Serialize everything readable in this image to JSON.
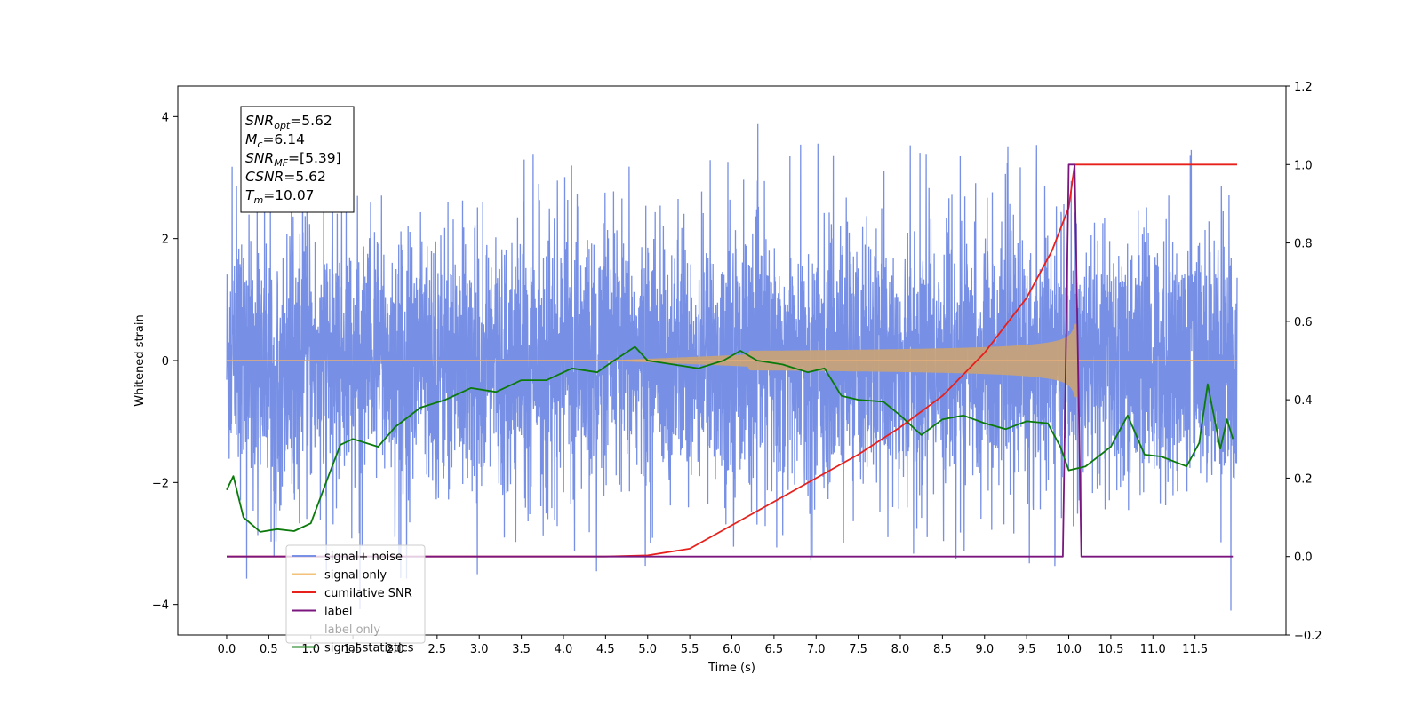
{
  "chart_data": {
    "type": "line",
    "xlabel": "Time (s)",
    "ylabel": "Whitened strain",
    "xlim": [
      -0.58,
      12.58
    ],
    "ylim_left": [
      -4.5,
      4.5
    ],
    "ylim_right": [
      -0.2,
      1.2
    ],
    "x_ticks": [
      0.0,
      0.5,
      1.0,
      1.5,
      2.0,
      2.5,
      3.0,
      3.5,
      4.0,
      4.5,
      5.0,
      5.5,
      6.0,
      6.5,
      7.0,
      7.5,
      8.0,
      8.5,
      9.0,
      9.5,
      10.0,
      10.5,
      11.0,
      11.5
    ],
    "x_tick_labels": [
      "0.0",
      "0.5",
      "1.0",
      "1.5",
      "2.0",
      "2.5",
      "3.0",
      "3.5",
      "4.0",
      "4.5",
      "5.0",
      "5.5",
      "6.0",
      "6.5",
      "7.0",
      "7.5",
      "8.0",
      "8.5",
      "9.0",
      "9.5",
      "10.0",
      "10.5",
      "11.0",
      "11.5"
    ],
    "y_ticks_left": [
      -4,
      -2,
      0,
      2,
      4
    ],
    "y_tick_labels_left": [
      "−4",
      "−2",
      "0",
      "2",
      "4"
    ],
    "y_ticks_right": [
      -0.2,
      0.0,
      0.2,
      0.4,
      0.6,
      0.8,
      1.0,
      1.2
    ],
    "y_tick_labels_right": [
      "−0.2",
      "0.0",
      "0.2",
      "0.4",
      "0.6",
      "0.8",
      "1.0",
      "1.2"
    ],
    "grid": false,
    "legend_position": "bottom-left",
    "annotation": {
      "lines": [
        {
          "main": "SNR",
          "sub": "opt",
          "value": "=5.62"
        },
        {
          "main": "M",
          "sub": "c",
          "value": "=6.14"
        },
        {
          "main": "SNR",
          "sub": "MF",
          "value": "=[5.39]"
        },
        {
          "main": "CSNR",
          "sub": "",
          "value": "=5.62"
        },
        {
          "main": "T",
          "sub": "m",
          "value": "=10.07"
        }
      ]
    },
    "series": [
      {
        "name": "signal+ noise",
        "axis": "left",
        "color": "#6b87e3",
        "style": "noise",
        "x_range": [
          0.0,
          12.0
        ],
        "typical_amplitude": 1.3,
        "max": 4.12,
        "min": -4.1
      },
      {
        "name": "signal only",
        "axis": "left",
        "color": "#f3c27a",
        "style": "chirp",
        "x_range": [
          0.0,
          10.1
        ],
        "peak_amplitude": 0.6,
        "peak_time": 10.07
      },
      {
        "name": "cumilative SNR",
        "axis": "right",
        "color": "#e8201b",
        "points": [
          [
            0.0,
            0.0
          ],
          [
            4.5,
            0.0
          ],
          [
            5.0,
            0.003
          ],
          [
            5.5,
            0.02
          ],
          [
            6.0,
            0.08
          ],
          [
            6.5,
            0.14
          ],
          [
            7.0,
            0.2
          ],
          [
            7.5,
            0.26
          ],
          [
            8.0,
            0.33
          ],
          [
            8.5,
            0.41
          ],
          [
            9.0,
            0.52
          ],
          [
            9.5,
            0.66
          ],
          [
            9.8,
            0.78
          ],
          [
            10.0,
            0.89
          ],
          [
            10.07,
            1.0
          ],
          [
            12.0,
            1.0
          ]
        ]
      },
      {
        "name": "label",
        "axis": "right",
        "color": "#7a167e",
        "points": [
          [
            0.0,
            0.0
          ],
          [
            9.93,
            0.0
          ],
          [
            10.0,
            1.0
          ],
          [
            10.07,
            1.0
          ],
          [
            10.15,
            0.0
          ],
          [
            11.95,
            0.0
          ]
        ]
      },
      {
        "name": "label only",
        "axis": "right",
        "color": "#7a167e",
        "hidden": true,
        "points": []
      },
      {
        "name": "signal statistics",
        "axis": "right",
        "color": "#0b7a0b",
        "points": [
          [
            0.0,
            0.17
          ],
          [
            0.08,
            0.205
          ],
          [
            0.2,
            0.1
          ],
          [
            0.4,
            0.063
          ],
          [
            0.6,
            0.07
          ],
          [
            0.8,
            0.065
          ],
          [
            1.0,
            0.085
          ],
          [
            1.2,
            0.2
          ],
          [
            1.35,
            0.285
          ],
          [
            1.5,
            0.3
          ],
          [
            1.8,
            0.28
          ],
          [
            2.0,
            0.33
          ],
          [
            2.3,
            0.38
          ],
          [
            2.6,
            0.4
          ],
          [
            2.9,
            0.43
          ],
          [
            3.2,
            0.42
          ],
          [
            3.5,
            0.45
          ],
          [
            3.8,
            0.45
          ],
          [
            4.1,
            0.48
          ],
          [
            4.4,
            0.47
          ],
          [
            4.6,
            0.5
          ],
          [
            4.85,
            0.535
          ],
          [
            5.0,
            0.5
          ],
          [
            5.3,
            0.49
          ],
          [
            5.6,
            0.48
          ],
          [
            5.9,
            0.5
          ],
          [
            6.1,
            0.525
          ],
          [
            6.3,
            0.5
          ],
          [
            6.6,
            0.49
          ],
          [
            6.9,
            0.47
          ],
          [
            7.1,
            0.48
          ],
          [
            7.3,
            0.41
          ],
          [
            7.5,
            0.4
          ],
          [
            7.8,
            0.395
          ],
          [
            8.0,
            0.36
          ],
          [
            8.25,
            0.31
          ],
          [
            8.5,
            0.35
          ],
          [
            8.75,
            0.36
          ],
          [
            9.0,
            0.34
          ],
          [
            9.25,
            0.325
          ],
          [
            9.5,
            0.345
          ],
          [
            9.75,
            0.34
          ],
          [
            9.9,
            0.28
          ],
          [
            10.0,
            0.22
          ],
          [
            10.2,
            0.23
          ],
          [
            10.5,
            0.28
          ],
          [
            10.7,
            0.36
          ],
          [
            10.9,
            0.26
          ],
          [
            11.1,
            0.255
          ],
          [
            11.4,
            0.23
          ],
          [
            11.55,
            0.29
          ],
          [
            11.65,
            0.44
          ],
          [
            11.8,
            0.275
          ],
          [
            11.88,
            0.35
          ],
          [
            11.95,
            0.3
          ]
        ]
      }
    ]
  }
}
